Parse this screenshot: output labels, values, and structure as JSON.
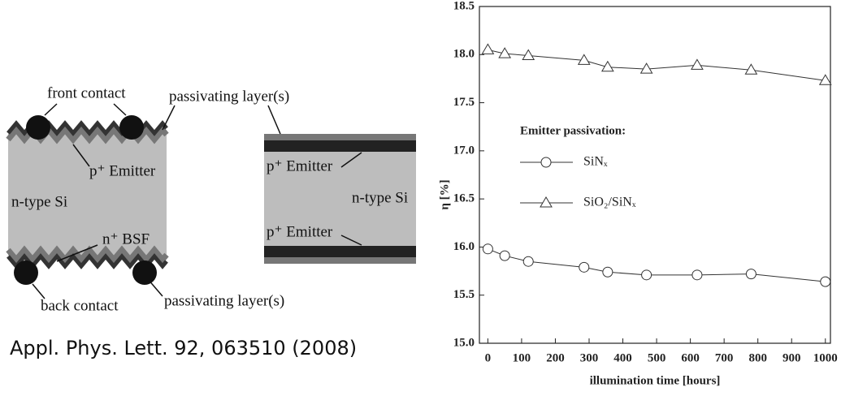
{
  "diagram": {
    "left": {
      "front_contact": "front contact",
      "passivating_top": "passivating layer(s)",
      "emitter": "p⁺ Emitter",
      "base": "n-type Si",
      "bsf": "n⁺ BSF",
      "back_contact": "back contact",
      "passivating_bottom": "passivating layer(s)"
    },
    "right": {
      "emitter_top": "p⁺ Emitter",
      "base": "n-type Si",
      "emitter_bottom": "p⁺ Emitter"
    },
    "citation": "Appl. Phys. Lett. 92, 063510 (2008)"
  },
  "chart_data": {
    "type": "line",
    "xlabel": "illumination time [hours]",
    "ylabel": "η [%]",
    "legend_title": "Emitter passivation:",
    "x": [
      0,
      50,
      120,
      285,
      355,
      470,
      620,
      780,
      1000
    ],
    "series": [
      {
        "name": "SiNₓ",
        "color": "#333333",
        "marker": "circle",
        "values": [
          15.98,
          15.91,
          15.85,
          15.79,
          15.74,
          15.71,
          15.71,
          15.72,
          15.64
        ]
      },
      {
        "name": "SiO₂/SiNₓ",
        "color": "#333333",
        "marker": "triangle",
        "values": [
          18.05,
          18.01,
          17.99,
          17.94,
          17.87,
          17.85,
          17.89,
          17.84,
          17.73
        ]
      }
    ],
    "xlim": [
      -25,
      1015
    ],
    "xticks": [
      0,
      100,
      200,
      300,
      400,
      500,
      600,
      700,
      800,
      900,
      1000
    ],
    "ylim": [
      15,
      18.5
    ],
    "yticks": [
      {
        "value": 15,
        "label": "15.0"
      },
      15.5,
      {
        "value": 16,
        "label": "16.0"
      },
      16.5,
      {
        "value": 17,
        "label": "17.0"
      },
      17.5,
      {
        "value": 18,
        "label": "18.0"
      },
      18.5
    ],
    "grid": false
  }
}
